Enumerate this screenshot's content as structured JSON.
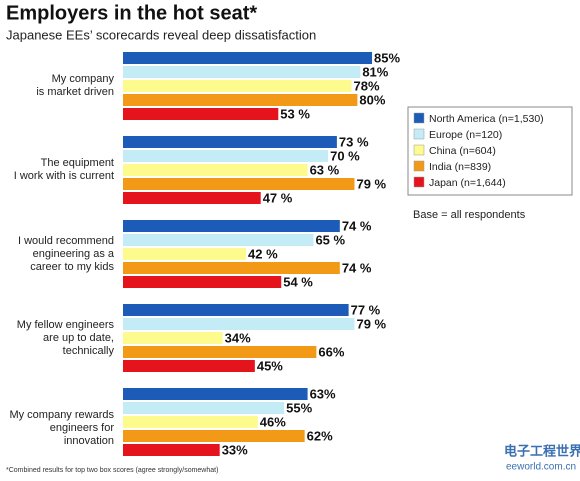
{
  "chart_data": {
    "type": "hbar-grouped",
    "title": "Employers in the hot seat*",
    "subtitle": "Japanese EEs’ scorecards reveal deep dissatisfaction",
    "categories": [
      "My company\nis market driven",
      "The equipment\nI work with is current",
      "I would recommend\nengineering as a\ncareer to my kids",
      "My fellow engineers\nare up to date,\ntechnically",
      "My company rewards\nengineers for innovation"
    ],
    "series": [
      {
        "name": "North America (n=1,530)",
        "color": "#1c5cb8",
        "values": [
          85,
          73,
          74,
          77,
          63
        ],
        "value_labels": [
          "85%",
          "73 %",
          "74 %",
          "77 %",
          "63%"
        ]
      },
      {
        "name": "Europe (n=120)",
        "color": "#c4ecf7",
        "values": [
          81,
          70,
          65,
          79,
          55
        ],
        "value_labels": [
          "81%",
          "70 %",
          "65 %",
          "79 %",
          "55%"
        ]
      },
      {
        "name": "China (n=604)",
        "color": "#fdfa8e",
        "values": [
          78,
          63,
          42,
          34,
          46
        ],
        "value_labels": [
          "78%",
          "63 %",
          "42 %",
          "34%",
          "46%"
        ]
      },
      {
        "name": "India (n=839)",
        "color": "#f29a17",
        "values": [
          80,
          79,
          74,
          66,
          62
        ],
        "value_labels": [
          "80%",
          "79 %",
          "74 %",
          "66%",
          "62%"
        ]
      },
      {
        "name": "Japan (n=1,644)",
        "color": "#e5141c",
        "values": [
          53,
          47,
          54,
          45,
          33
        ],
        "value_labels": [
          "53 %",
          "47 %",
          "54 %",
          "45%",
          "33%"
        ]
      }
    ],
    "note": "Base = all respondents",
    "footnote": "*Combined results for top two box scores (agree strongly/somewhat)",
    "watermark": "电子工程世界",
    "watermark_url": "eeworld.com.cn"
  }
}
